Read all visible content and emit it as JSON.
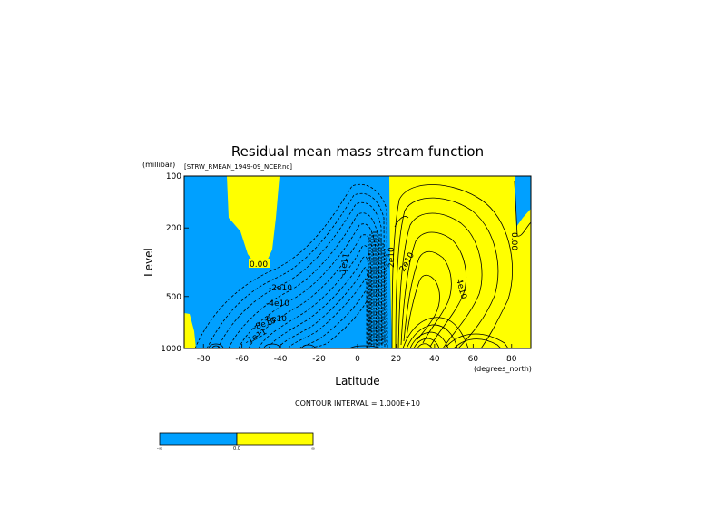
{
  "chart_data": {
    "type": "heatmap",
    "title": "Residual mean mass stream function",
    "subtitle": "[STRW_RMEAN_1949-09_NCEP.nc]",
    "xlabel": "Latitude",
    "x_units": "(degrees_north)",
    "ylabel": "Level",
    "y_units": "(millibar)",
    "y_scale": "log",
    "x_ticks": [
      -80,
      -60,
      -40,
      -20,
      0,
      20,
      40,
      60,
      80
    ],
    "x_tick_labels": [
      "-80",
      "-60",
      "-40",
      "-20",
      "0",
      "20",
      "40",
      "60",
      "80"
    ],
    "y_ticks": [
      100,
      200,
      500,
      1000
    ],
    "y_tick_labels": [
      "100",
      "200",
      "500",
      "1000"
    ],
    "xlim": [
      -90,
      90
    ],
    "ylim": [
      1000,
      100
    ],
    "contour_interval_text": "CONTOUR INTERVAL = 1.000E+10",
    "contour_labels": [
      "0.00",
      "-2e10",
      "-4e10",
      "-6e10",
      "-8e10",
      "-1e11",
      "-1e11",
      "2e10",
      "4e10",
      "2e10",
      "0.00"
    ],
    "colorbar": {
      "levels": [
        "-∞",
        "0.0",
        "∞"
      ],
      "colors": [
        "#00A0FF",
        "#FFFF00"
      ]
    },
    "grid": false
  }
}
